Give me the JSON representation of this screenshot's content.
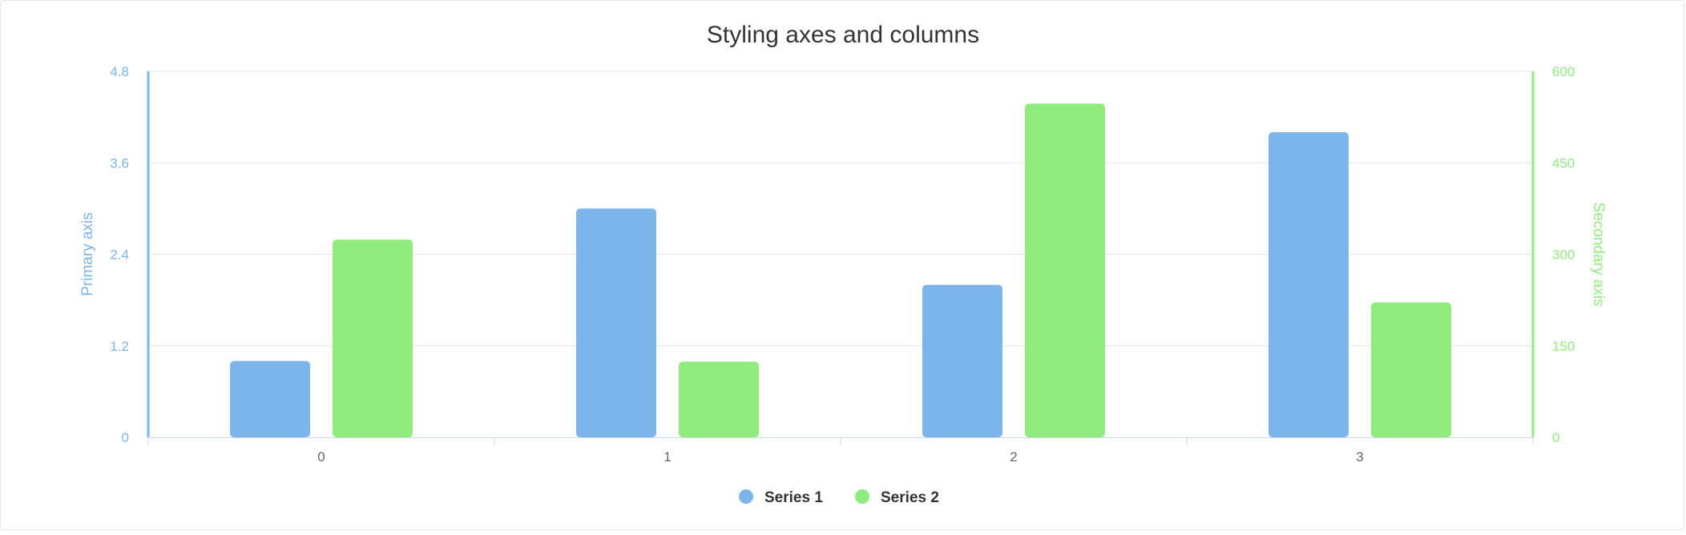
{
  "chart_data": {
    "type": "bar",
    "title": "Styling axes and columns",
    "categories": [
      "0",
      "1",
      "2",
      "3"
    ],
    "series": [
      {
        "name": "Series 1",
        "axis": "primary",
        "color": "#7cb5ec",
        "values": [
          1,
          3,
          2,
          4
        ]
      },
      {
        "name": "Series 2",
        "axis": "secondary",
        "color": "#90ed7d",
        "values": [
          324,
          124,
          547,
          221
        ]
      }
    ],
    "primary_axis": {
      "title": "Primary axis",
      "ylim": [
        0,
        4.8
      ],
      "ticks": [
        "0",
        "1.2",
        "2.4",
        "3.6",
        "4.8"
      ],
      "color": "#7cb5ec"
    },
    "secondary_axis": {
      "title": "Secondary axis",
      "ylim": [
        0,
        600
      ],
      "ticks": [
        "0",
        "150",
        "300",
        "450",
        "600"
      ],
      "color": "#90ed7d"
    },
    "grid": true,
    "legend": {
      "position": "bottom-center",
      "items": [
        "Series 1",
        "Series 2"
      ]
    }
  }
}
